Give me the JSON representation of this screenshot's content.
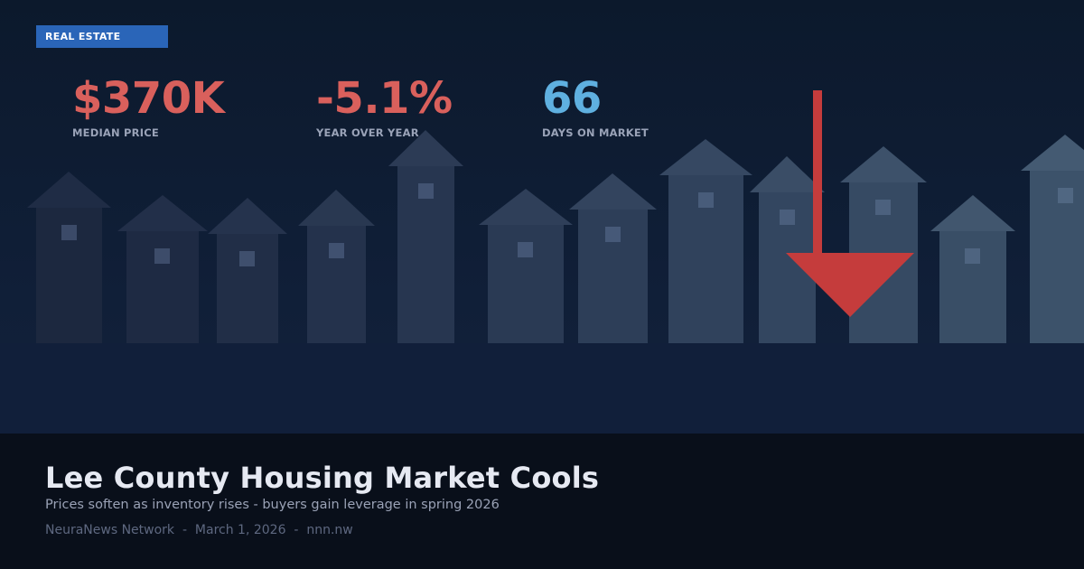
{
  "category_badge": "REAL ESTATE",
  "stats": [
    {
      "value": "$370K",
      "label": "MEDIAN PRICE",
      "color": "#d9605c"
    },
    {
      "value": "-5.1%",
      "label": "YEAR OVER YEAR",
      "color": "#d9605c"
    },
    {
      "value": "66",
      "label": "DAYS ON MARKET",
      "color": "#5fb0e0"
    }
  ],
  "headline": "Lee County Housing Market Cools",
  "subheadline": "Prices soften as inventory rises - buyers gain leverage in spring 2026",
  "byline": {
    "source": "NeuraNews Network",
    "separator": "-",
    "date": "March 1, 2026",
    "site": "nnn.nw"
  },
  "colors": {
    "badge": "#2a65b8",
    "arrow": "#c53c3c",
    "footer_bg": "#090f1a"
  },
  "decoration": {
    "houses_count": 12,
    "arrow_direction": "down"
  }
}
